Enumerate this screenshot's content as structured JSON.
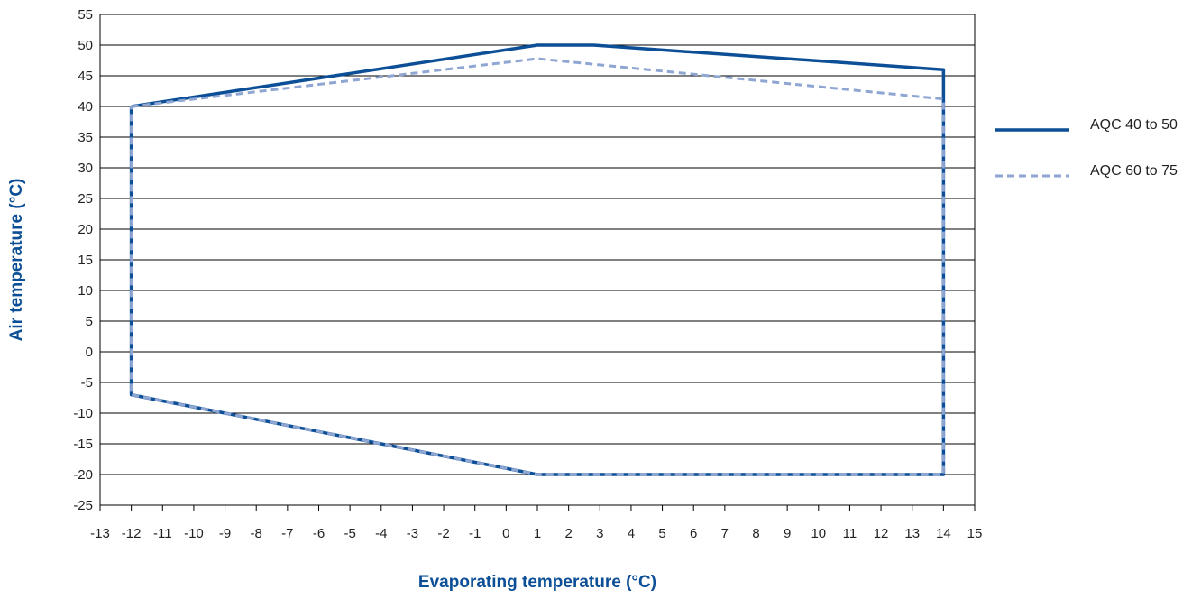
{
  "chart_data": {
    "type": "line",
    "xlabel": "Evaporating temperature (°C)",
    "ylabel": "Air temperature (°C)",
    "xlim": [
      -13,
      15
    ],
    "ylim": [
      -25,
      55
    ],
    "x_ticks": [
      -13,
      -12,
      -11,
      -10,
      -9,
      -8,
      -7,
      -6,
      -5,
      -4,
      -3,
      -2,
      -1,
      0,
      1,
      2,
      3,
      4,
      5,
      6,
      7,
      8,
      9,
      10,
      11,
      12,
      13,
      14,
      15
    ],
    "y_ticks": [
      -25,
      -20,
      -15,
      -10,
      -5,
      0,
      5,
      10,
      15,
      20,
      25,
      30,
      35,
      40,
      45,
      50,
      55
    ],
    "grid": "horizontal",
    "legend_position": "right",
    "series": [
      {
        "name": "AQC 40 to 50",
        "color": "#0c4f96",
        "style": "solid",
        "points": [
          [
            -12,
            40
          ],
          [
            1,
            50
          ],
          [
            2.8,
            50
          ],
          [
            14,
            46
          ],
          [
            14,
            -20
          ],
          [
            1,
            -20
          ],
          [
            -12,
            -7
          ],
          [
            -12,
            40
          ]
        ]
      },
      {
        "name": "AQC 60 to 75",
        "color": "#8fa6d3",
        "style": "dashed",
        "points": [
          [
            -12,
            40
          ],
          [
            1,
            47.8
          ],
          [
            14,
            41.2
          ],
          [
            14,
            -20
          ],
          [
            1,
            -20
          ],
          [
            -12,
            -7
          ],
          [
            -12,
            40
          ]
        ]
      }
    ]
  }
}
